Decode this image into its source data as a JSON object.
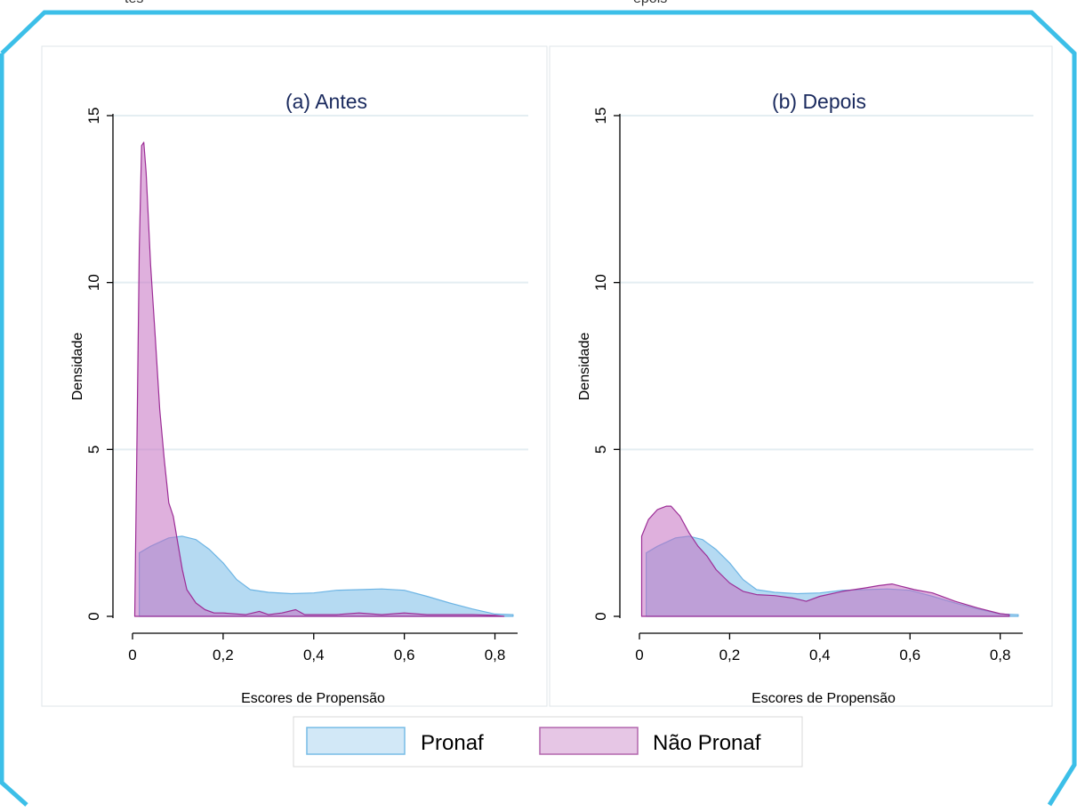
{
  "figure": {
    "frame_color": "#3cbfe8",
    "top_text_left": "tes",
    "top_text_right": "epois"
  },
  "colors": {
    "pronaf_fill": "#9ccdee",
    "pronaf_stroke": "#6cb4e4",
    "nao_pronaf_fill": "#c56fc1",
    "nao_pronaf_stroke": "#9c2d96",
    "grid": "#e4eef2",
    "title": "#1a2a5e",
    "axis": "#000000"
  },
  "legend": {
    "items": [
      {
        "label": "Pronaf",
        "fill": "#d2e8f7",
        "stroke": "#77bce6"
      },
      {
        "label": "Não Pronaf",
        "fill": "#e6c6e5",
        "stroke": "#b266ad"
      }
    ]
  },
  "chart_data": [
    {
      "type": "area",
      "title": "(a) Antes",
      "xlabel": "Escores de Propensão",
      "ylabel": "Densidade",
      "xlim": [
        0,
        0.85
      ],
      "ylim": [
        0,
        15
      ],
      "xticks": [
        0,
        0.2,
        0.4,
        0.6,
        0.8
      ],
      "xtick_labels": [
        "0",
        "0,2",
        "0,4",
        "0,6",
        "0,8"
      ],
      "yticks": [
        0,
        5,
        10,
        15
      ],
      "ytick_labels": [
        "0",
        "5",
        "10",
        "15"
      ],
      "grid": true,
      "series": [
        {
          "name": "Pronaf",
          "x": [
            0.015,
            0.04,
            0.08,
            0.11,
            0.14,
            0.17,
            0.2,
            0.23,
            0.26,
            0.3,
            0.35,
            0.4,
            0.45,
            0.5,
            0.55,
            0.6,
            0.65,
            0.7,
            0.75,
            0.8,
            0.84
          ],
          "y": [
            1.9,
            2.1,
            2.35,
            2.4,
            2.3,
            2.0,
            1.6,
            1.1,
            0.8,
            0.72,
            0.68,
            0.7,
            0.78,
            0.8,
            0.82,
            0.78,
            0.6,
            0.4,
            0.22,
            0.07,
            0.05
          ]
        },
        {
          "name": "Não Pronaf",
          "x": [
            0.005,
            0.01,
            0.015,
            0.02,
            0.025,
            0.03,
            0.04,
            0.05,
            0.06,
            0.07,
            0.08,
            0.09,
            0.1,
            0.11,
            0.12,
            0.14,
            0.16,
            0.18,
            0.2,
            0.25,
            0.28,
            0.3,
            0.33,
            0.36,
            0.38,
            0.45,
            0.5,
            0.55,
            0.6,
            0.65,
            0.7,
            0.75,
            0.8,
            0.82
          ],
          "y": [
            0,
            5.5,
            11.0,
            14.1,
            14.2,
            13.3,
            10.5,
            8.4,
            6.2,
            4.7,
            3.4,
            3.0,
            2.2,
            1.4,
            0.8,
            0.4,
            0.2,
            0.1,
            0.1,
            0.05,
            0.15,
            0.05,
            0.1,
            0.2,
            0.05,
            0.05,
            0.1,
            0.05,
            0.1,
            0.05,
            0.05,
            0.05,
            0.03,
            0
          ]
        }
      ]
    },
    {
      "type": "area",
      "title": "(b) Depois",
      "xlabel": "Escores de Propensão",
      "ylabel": "Densidade",
      "xlim": [
        0,
        0.85
      ],
      "ylim": [
        0,
        15
      ],
      "xticks": [
        0,
        0.2,
        0.4,
        0.6,
        0.8
      ],
      "xtick_labels": [
        "0",
        "0,2",
        "0,4",
        "0,6",
        "0,8"
      ],
      "yticks": [
        0,
        5,
        10,
        15
      ],
      "ytick_labels": [
        "0",
        "5",
        "10",
        "15"
      ],
      "grid": true,
      "series": [
        {
          "name": "Pronaf",
          "x": [
            0.015,
            0.04,
            0.08,
            0.11,
            0.14,
            0.17,
            0.2,
            0.23,
            0.26,
            0.3,
            0.35,
            0.4,
            0.45,
            0.5,
            0.55,
            0.6,
            0.65,
            0.7,
            0.75,
            0.8,
            0.84
          ],
          "y": [
            1.9,
            2.1,
            2.35,
            2.4,
            2.3,
            2.0,
            1.6,
            1.1,
            0.8,
            0.72,
            0.68,
            0.7,
            0.78,
            0.8,
            0.82,
            0.78,
            0.6,
            0.4,
            0.22,
            0.07,
            0.05
          ]
        },
        {
          "name": "Não Pronaf",
          "x": [
            0.005,
            0.02,
            0.04,
            0.06,
            0.07,
            0.09,
            0.11,
            0.13,
            0.15,
            0.17,
            0.2,
            0.23,
            0.26,
            0.3,
            0.34,
            0.37,
            0.4,
            0.45,
            0.5,
            0.53,
            0.56,
            0.58,
            0.61,
            0.65,
            0.7,
            0.75,
            0.8,
            0.82
          ],
          "y": [
            2.4,
            2.9,
            3.2,
            3.3,
            3.3,
            3.0,
            2.5,
            2.1,
            1.8,
            1.4,
            1.0,
            0.75,
            0.65,
            0.62,
            0.55,
            0.45,
            0.6,
            0.75,
            0.85,
            0.92,
            0.97,
            0.9,
            0.8,
            0.7,
            0.45,
            0.25,
            0.08,
            0.05
          ]
        }
      ]
    }
  ]
}
